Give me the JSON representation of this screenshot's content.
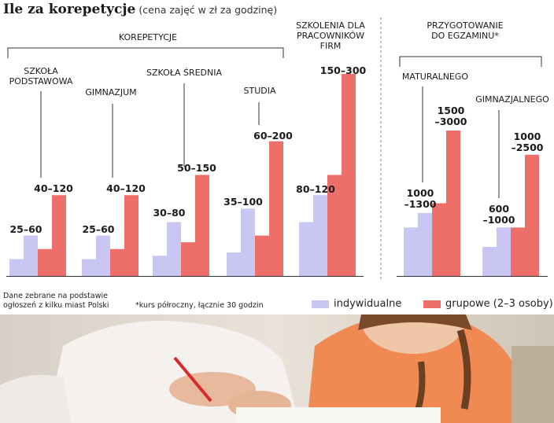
{
  "title": {
    "main": "Ile za korepetycje",
    "sub": "(cena zajęć w zł za godzinę)"
  },
  "colors": {
    "individual": "#c9c6f3",
    "group": "#ee6f6a",
    "line": "#333333",
    "divider": "#888888"
  },
  "chart_data": {
    "type": "bar",
    "title": "Ile za korepetycje",
    "subtitle": "(cena zajęć w zł za godzinę)",
    "group_labels": [
      "KOREPETYCJE",
      "PRZYGOTOWANIE\nDO EGZAMINU*"
    ],
    "categories": [
      {
        "label": "SZKOŁA\nPODSTAWOWA",
        "group": "KOREPETYCJE",
        "individual": [
          25,
          60
        ],
        "group_price": [
          40,
          120
        ],
        "individual_label": "25–60",
        "group_label": "40–120"
      },
      {
        "label": "GIMNAZJUM",
        "group": "KOREPETYCJE",
        "individual": [
          25,
          60
        ],
        "group_price": [
          40,
          120
        ],
        "individual_label": "25–60",
        "group_label": "40–120"
      },
      {
        "label": "SZKOŁA ŚREDNIA",
        "group": "KOREPETYCJE",
        "individual": [
          30,
          80
        ],
        "group_price": [
          50,
          150
        ],
        "individual_label": "30–80",
        "group_label": "50–150"
      },
      {
        "label": "STUDIA",
        "group": "KOREPETYCJE",
        "individual": [
          35,
          100
        ],
        "group_price": [
          60,
          200
        ],
        "individual_label": "35–100",
        "group_label": "60–200"
      },
      {
        "label": "SZKOLENIA DLA\nPRACOWNIKÓW\nFIRM",
        "group": "",
        "individual": [
          80,
          120
        ],
        "group_price": [
          150,
          300
        ],
        "individual_label": "80–120",
        "group_label": "150–300"
      },
      {
        "label": "MATURALNEGO",
        "group": "PRZYGOTOWANIE DO EGZAMINU*",
        "individual": [
          1000,
          1300
        ],
        "group_price": [
          1500,
          3000
        ],
        "individual_label": "1000\n–1300",
        "group_label": "1500\n–3000"
      },
      {
        "label": "GIMNAZJALNEGO",
        "group": "PRZYGOTOWANIE DO EGZAMINU*",
        "individual": [
          600,
          1000
        ],
        "group_price": [
          1000,
          2500
        ],
        "individual_label": "600\n–1000",
        "group_label": "1000\n–2500"
      }
    ],
    "series": [
      {
        "name": "indywidualne",
        "color": "#c9c6f3"
      },
      {
        "name": "grupowe (2–3 osoby)",
        "color": "#ee6f6a"
      }
    ],
    "scales": {
      "korepetycje_max": 300,
      "egzamin_max": 3000
    },
    "grid": false,
    "legend": "bottom-right"
  },
  "notes": {
    "source_line1": "Dane zebrane na podstawie",
    "source_line2": "ogłoszeń z kilku miast Polski",
    "footnote": "*kurs półroczny, łącznie 30 godzin"
  },
  "legend": {
    "individual": "indywidualne",
    "group": "grupowe (2–3 osoby)"
  },
  "photo": {
    "description": "photo of tutor and girl writing"
  }
}
